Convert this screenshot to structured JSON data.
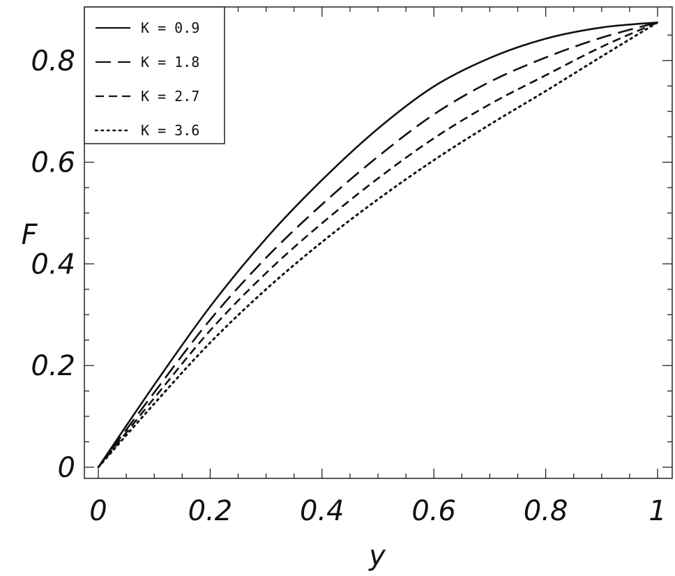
{
  "chart_data": {
    "type": "line",
    "title": "",
    "xlabel": "y",
    "ylabel": "F",
    "xlim": [
      0,
      1
    ],
    "ylim": [
      0,
      0.86
    ],
    "xticks": [
      0,
      0.2,
      0.4,
      0.6,
      0.8,
      1
    ],
    "xtick_labels": [
      "0",
      "0.2",
      "0.4",
      "0.6",
      "0.8",
      "1"
    ],
    "yticks": [
      0,
      0.2,
      0.4,
      0.6,
      0.8
    ],
    "ytick_labels": [
      "0",
      "0.2",
      "0.4",
      "0.6",
      "0.8"
    ],
    "grid": false,
    "legend_position": "top-left",
    "x": [
      0,
      0.1,
      0.2,
      0.3,
      0.4,
      0.5,
      0.6,
      0.7,
      0.8,
      0.9,
      1.0
    ],
    "series": [
      {
        "name": "K = 0.9",
        "style": "solid",
        "values": [
          0,
          0.162,
          0.316,
          0.45,
          0.565,
          0.666,
          0.749,
          0.805,
          0.843,
          0.865,
          0.875
        ]
      },
      {
        "name": "K = 1.8",
        "style": "long-dash",
        "values": [
          0,
          0.147,
          0.29,
          0.412,
          0.517,
          0.611,
          0.694,
          0.758,
          0.806,
          0.845,
          0.875
        ]
      },
      {
        "name": "K = 2.7",
        "style": "short-dash",
        "values": [
          0,
          0.136,
          0.269,
          0.382,
          0.48,
          0.568,
          0.647,
          0.714,
          0.771,
          0.827,
          0.875
        ]
      },
      {
        "name": "K = 3.6",
        "style": "dotted",
        "values": [
          0,
          0.125,
          0.245,
          0.35,
          0.443,
          0.527,
          0.604,
          0.674,
          0.74,
          0.808,
          0.875
        ]
      }
    ]
  }
}
